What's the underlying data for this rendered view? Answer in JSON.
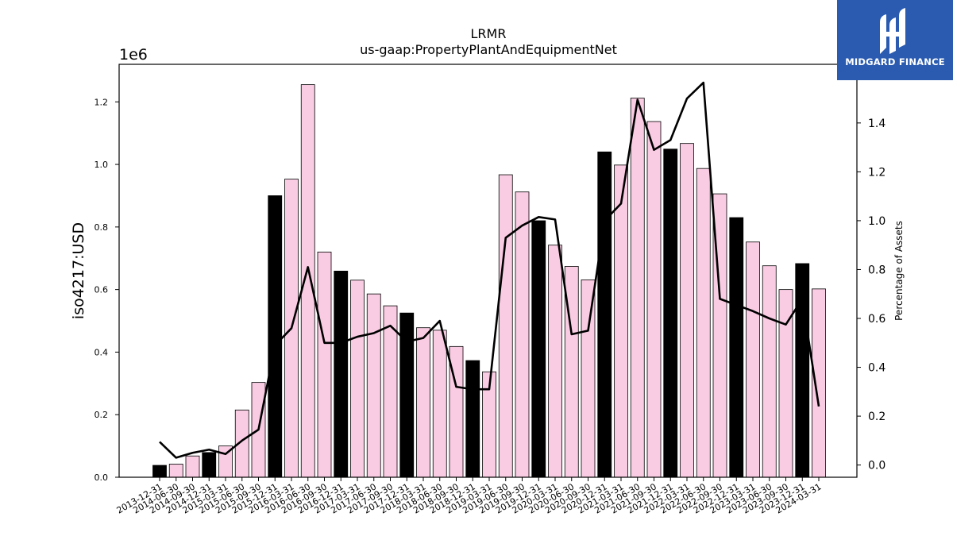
{
  "chart_data": {
    "type": "bar",
    "title": "LRMR",
    "subtitle": "us-gaap:PropertyPlantAndEquipmentNet",
    "ylabel": "iso4217:USD",
    "y2label": "Percentage of Assets",
    "y_multiplier_label": "1e6",
    "ylim": [
      0,
      1320000
    ],
    "y2lim": [
      -0.05,
      1.64
    ],
    "yticks": [
      "0.0",
      "0.2",
      "0.4",
      "0.6",
      "0.8",
      "1.0",
      "1.2"
    ],
    "y2ticks": [
      "0.0",
      "0.2",
      "0.4",
      "0.6",
      "0.8",
      "1.0",
      "1.2",
      "1.4"
    ],
    "categories": [
      "2013-12-31",
      "2014-06-30",
      "2014-09-30",
      "2014-12-31",
      "2015-03-31",
      "2015-06-30",
      "2015-09-30",
      "2015-12-31",
      "2016-03-31",
      "2016-06-30",
      "2016-09-30",
      "2016-12-31",
      "2017-03-31",
      "2017-06-30",
      "2017-09-30",
      "2017-12-31",
      "2018-03-31",
      "2018-06-30",
      "2018-09-30",
      "2018-12-31",
      "2019-03-31",
      "2019-06-30",
      "2019-09-30",
      "2019-12-31",
      "2020-03-31",
      "2020-06-30",
      "2020-09-30",
      "2020-12-31",
      "2021-03-31",
      "2021-06-30",
      "2021-09-30",
      "2021-12-31",
      "2022-03-31",
      "2022-06-30",
      "2022-09-30",
      "2022-12-31",
      "2023-03-31",
      "2023-06-30",
      "2023-09-30",
      "2023-12-31",
      "2024-03-31"
    ],
    "series": [
      {
        "name": "",
        "kind": "bar",
        "values": [
          38000,
          42000,
          68000,
          79000,
          100000,
          215000,
          303000,
          900000,
          953000,
          1255000,
          720000,
          659000,
          630000,
          586000,
          548000,
          525000,
          478000,
          470000,
          418000,
          373000,
          337000,
          967000,
          912000,
          820000,
          742000,
          674000,
          631000,
          1040000,
          998000,
          1212000,
          1137000,
          1049000,
          1067000,
          987000,
          906000,
          830000,
          752000,
          676000,
          600000,
          683000,
          602000
        ],
        "annual_color": "#000000",
        "quarterly_color": "#f9cce3",
        "annual_flags": [
          1,
          0,
          0,
          1,
          0,
          0,
          0,
          1,
          0,
          0,
          0,
          1,
          0,
          0,
          0,
          1,
          0,
          0,
          0,
          1,
          0,
          0,
          0,
          1,
          0,
          0,
          0,
          1,
          0,
          0,
          0,
          1,
          0,
          0,
          0,
          1,
          0,
          0,
          0,
          1,
          0
        ]
      },
      {
        "name": "",
        "kind": "line",
        "axis": "y2",
        "color": "#000000",
        "values": [
          0.095,
          0.03,
          0.05,
          0.063,
          0.045,
          0.1,
          0.145,
          0.49,
          0.56,
          0.81,
          0.5,
          0.5,
          0.525,
          0.54,
          0.57,
          0.505,
          0.52,
          0.59,
          0.32,
          0.31,
          0.31,
          0.93,
          0.98,
          1.015,
          1.005,
          0.535,
          0.55,
          1.0,
          1.07,
          1.495,
          1.29,
          1.33,
          1.5,
          1.565,
          0.68,
          0.655,
          0.63,
          0.6,
          0.575,
          0.68,
          0.24
        ]
      }
    ],
    "grid": false,
    "legend": "none"
  },
  "logo": {
    "text": "MIDGARD FINANCE",
    "icon": "midgard-logo-icon"
  }
}
